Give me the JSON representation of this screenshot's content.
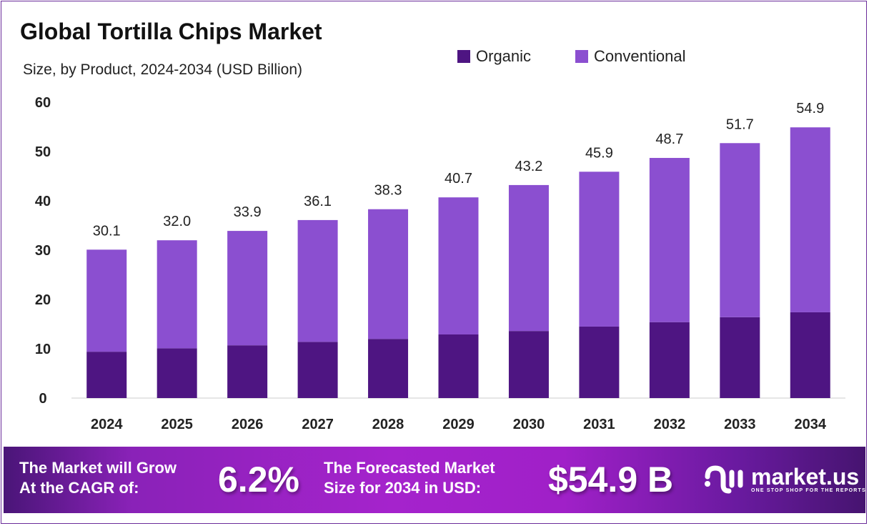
{
  "chart_data": {
    "type": "bar",
    "stacked": true,
    "title": "Global Tortilla Chips Market",
    "subtitle": "Size, by Product, 2024-2034 (USD Billion)",
    "xlabel": "",
    "ylabel": "",
    "ylim": [
      0,
      60
    ],
    "yticks": [
      0,
      10,
      20,
      30,
      40,
      50,
      60
    ],
    "categories": [
      "2024",
      "2025",
      "2026",
      "2027",
      "2028",
      "2029",
      "2030",
      "2031",
      "2032",
      "2033",
      "2034"
    ],
    "series": [
      {
        "name": "Organic",
        "color": "#4e1582",
        "values": [
          9.4,
          10.1,
          10.7,
          11.4,
          12.0,
          12.9,
          13.6,
          14.5,
          15.4,
          16.4,
          17.4
        ]
      },
      {
        "name": "Conventional",
        "color": "#8b4fd0",
        "values": [
          20.7,
          21.9,
          23.2,
          24.7,
          26.3,
          27.8,
          29.6,
          31.4,
          33.3,
          35.3,
          37.5
        ]
      }
    ],
    "totals": [
      "30.1",
      "32.0",
      "33.9",
      "36.1",
      "38.3",
      "40.7",
      "43.2",
      "45.9",
      "48.7",
      "51.7",
      "54.9"
    ],
    "legend_position": "top-right",
    "grid": false
  },
  "banner": {
    "cagr_label_line1": "The Market will Grow",
    "cagr_label_line2": "At the CAGR of:",
    "cagr_value": "6.2%",
    "forecast_label_line1": "The Forecasted Market",
    "forecast_label_line2": "Size for 2034 in USD:",
    "forecast_value": "$54.9 B",
    "logo_name": "market.us",
    "logo_tagline": "ONE STOP SHOP FOR THE REPORTS"
  }
}
